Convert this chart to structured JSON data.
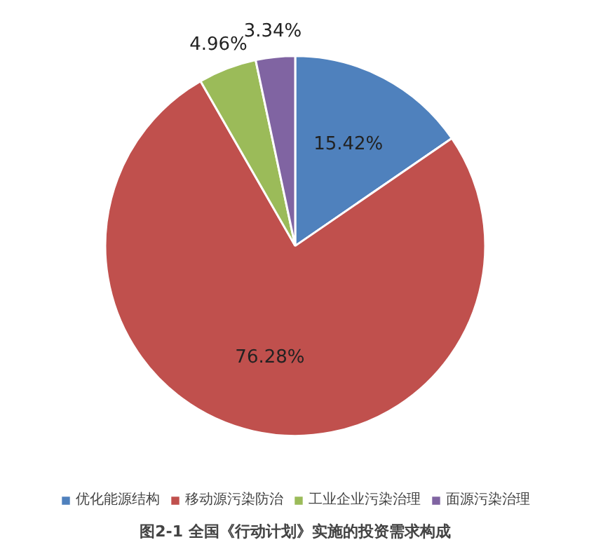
{
  "chart_data": {
    "type": "pie",
    "title": "图2-1 全国《行动计划》实施的投资需求构成",
    "categories": [
      "优化能源结构",
      "移动源污染防治",
      "工业企业污染治理",
      "面源污染治理"
    ],
    "values": [
      15.42,
      76.28,
      4.96,
      3.34
    ],
    "colors": [
      "#4f81bd",
      "#c0504d",
      "#9bbb59",
      "#8064a2"
    ],
    "value_labels": [
      "15.42%",
      "76.28%",
      "4.96%",
      "3.34%"
    ],
    "legend": "bottom"
  }
}
